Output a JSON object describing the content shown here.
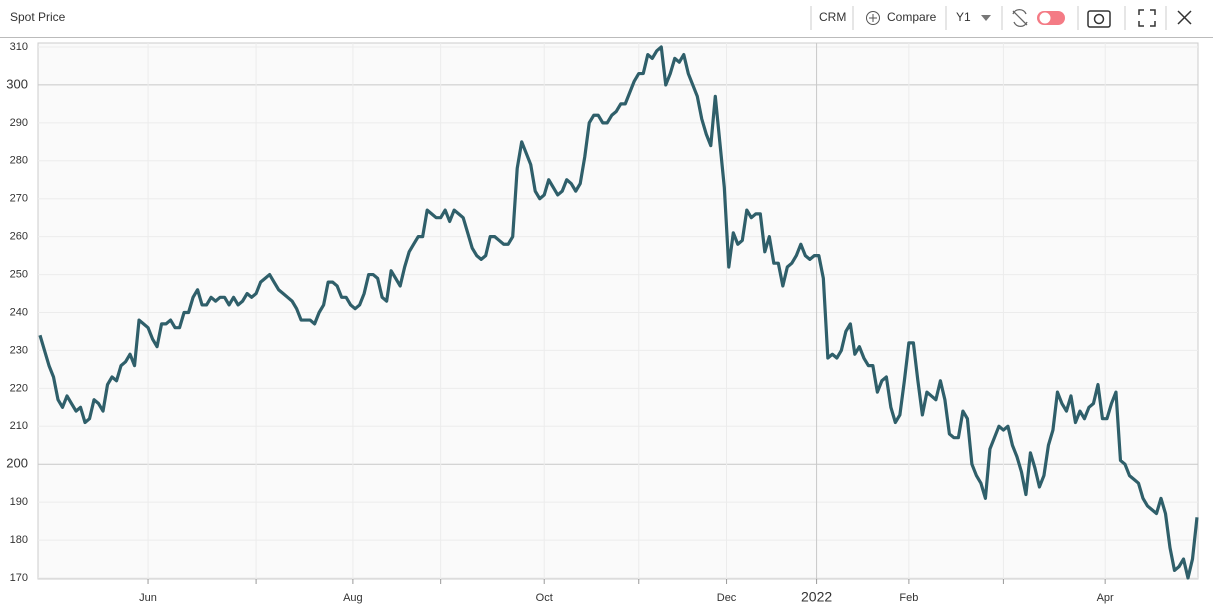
{
  "header": {
    "title": "Spot Price"
  },
  "toolbar": {
    "ticker": "CRM",
    "compare": "Compare",
    "period": "Y1"
  },
  "chart_data": {
    "type": "line",
    "values": [
      234,
      230,
      226,
      223,
      217,
      215,
      218,
      216,
      214,
      215,
      211,
      212,
      217,
      216,
      214,
      221,
      223,
      222,
      226,
      227,
      229,
      226,
      238,
      237,
      236,
      233,
      231,
      237,
      237,
      238,
      236,
      236,
      240,
      240,
      244,
      246,
      242,
      242,
      244,
      243,
      244,
      244,
      242,
      244,
      242,
      243,
      245,
      244,
      245,
      248,
      249,
      250,
      248,
      246,
      245,
      244,
      243,
      241,
      238,
      238,
      238,
      237,
      240,
      242,
      248,
      248,
      247,
      244,
      244,
      242,
      241,
      242,
      245,
      250,
      250,
      249,
      244,
      243,
      251,
      249,
      247,
      252,
      256,
      258,
      260,
      260,
      267,
      266,
      265,
      265,
      267,
      264,
      267,
      266,
      265,
      261,
      257,
      255,
      254,
      255,
      260,
      260,
      259,
      258,
      258,
      260,
      278,
      285,
      282,
      279,
      272,
      270,
      271,
      275,
      273,
      271,
      272,
      275,
      274,
      272,
      274,
      281,
      290,
      292,
      292,
      290,
      290,
      292,
      293,
      295,
      295,
      298,
      301,
      303,
      303,
      308,
      307,
      309,
      310,
      300,
      303,
      307,
      306,
      308,
      303,
      300,
      297,
      291,
      287,
      284,
      297,
      285,
      273,
      252,
      261,
      258,
      259,
      267,
      265,
      266,
      266,
      256,
      260,
      253,
      253,
      247,
      252,
      253,
      255,
      258,
      255,
      254,
      255,
      255,
      249,
      228,
      229,
      228,
      230,
      235,
      237,
      229,
      231,
      228,
      226,
      226,
      219,
      222,
      223,
      215,
      211,
      213,
      222,
      232,
      232,
      222,
      213,
      219,
      218,
      217,
      222,
      217,
      208,
      207,
      207,
      214,
      212,
      200,
      197,
      195,
      191,
      204,
      207,
      210,
      209,
      210,
      205,
      202,
      198,
      192,
      203,
      199,
      194,
      197,
      205,
      209,
      219,
      216,
      214,
      218,
      211,
      214,
      212,
      215,
      216,
      221,
      212,
      212,
      216,
      219,
      201,
      200,
      197,
      196,
      195,
      191,
      189,
      188,
      187,
      191,
      187,
      178,
      172,
      173,
      175,
      170,
      175,
      186
    ],
    "color": "#2f5f6a",
    "xlim": [
      0,
      257
    ],
    "xticks": [
      {
        "value": 24,
        "label": "Jun"
      },
      {
        "value": 69.5,
        "label": "Aug"
      },
      {
        "value": 112,
        "label": "Oct"
      },
      {
        "value": 152.5,
        "label": "Dec"
      },
      {
        "value": 172.5,
        "label": "2022"
      },
      {
        "value": 193,
        "label": "Feb"
      },
      {
        "value": 236.6,
        "label": "Apr"
      }
    ],
    "xminorticks": [
      48,
      89,
      133,
      214
    ],
    "ylim": [
      170,
      310
    ],
    "yticks": [
      170,
      180,
      190,
      200,
      210,
      220,
      230,
      240,
      250,
      260,
      270,
      280,
      290,
      300,
      310
    ],
    "grid": true
  }
}
